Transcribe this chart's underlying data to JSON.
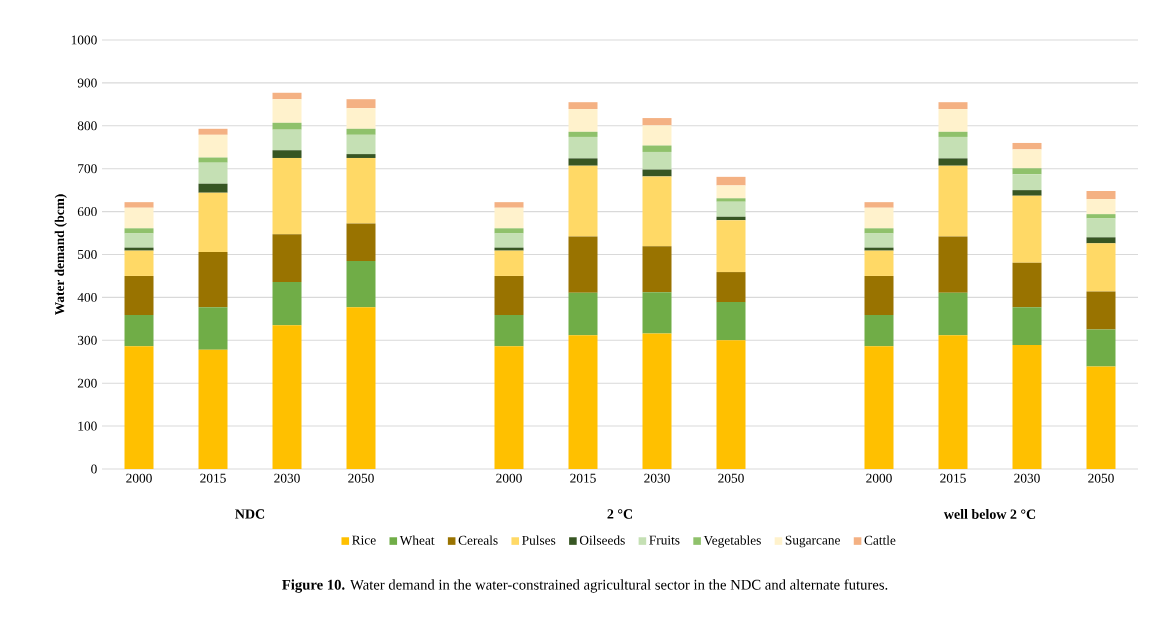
{
  "chart_data": {
    "type": "bar",
    "stacked": true,
    "ylabel": "Water demand (bcm)",
    "categories": [
      "2000",
      "2015",
      "2030",
      "2050",
      null,
      "2000",
      "2015",
      "2030",
      "2050",
      null,
      "2000",
      "2015",
      "2030",
      "2050"
    ],
    "series": [
      {
        "name": "Rice",
        "color": "#ffc000",
        "values": [
          286,
          278,
          335,
          377,
          null,
          286,
          312,
          316,
          300,
          null,
          286,
          312,
          289,
          239
        ]
      },
      {
        "name": "Wheat",
        "color": "#70ad47",
        "values": [
          73,
          99,
          101,
          108,
          null,
          73,
          99,
          96,
          89,
          null,
          73,
          99,
          88,
          86
        ]
      },
      {
        "name": "Cereals",
        "color": "#997300",
        "values": [
          91,
          129,
          111,
          87,
          null,
          91,
          131,
          107,
          70,
          null,
          91,
          131,
          104,
          89
        ]
      },
      {
        "name": "Pulses",
        "color": "#ffd966",
        "values": [
          59,
          138,
          178,
          153,
          null,
          59,
          165,
          163,
          121,
          null,
          59,
          165,
          156,
          112
        ]
      },
      {
        "name": "Oilseeds",
        "color": "#375623",
        "values": [
          7,
          21,
          18,
          9,
          null,
          7,
          17,
          16,
          8,
          null,
          7,
          17,
          13,
          14
        ]
      },
      {
        "name": "Fruits",
        "color": "#c5e0b4",
        "values": [
          33,
          49,
          48,
          45,
          null,
          33,
          50,
          41,
          35,
          null,
          33,
          50,
          37,
          44
        ]
      },
      {
        "name": "Vegetables",
        "color": "#8fc16b",
        "values": [
          12,
          12,
          16,
          14,
          null,
          12,
          12,
          15,
          8,
          null,
          12,
          12,
          14,
          10
        ]
      },
      {
        "name": "Sugarcane",
        "color": "#fff2cc",
        "values": [
          48,
          53,
          55,
          48,
          null,
          48,
          53,
          47,
          30,
          null,
          48,
          53,
          44,
          35
        ]
      },
      {
        "name": "Cattle",
        "color": "#f4b183",
        "values": [
          13,
          14,
          15,
          21,
          null,
          13,
          16,
          17,
          20,
          null,
          13,
          16,
          15,
          19
        ]
      }
    ],
    "ylim": [
      0,
      1000
    ],
    "yticks": [
      0,
      100,
      200,
      300,
      400,
      500,
      600,
      700,
      800,
      900,
      1000
    ],
    "grid": "y",
    "legend": "bottom",
    "annotations": [
      "NDC",
      "2 °C",
      "well below 2  °C",
      "**Figure 10.** Water demand in the water-constrained agricultural sector in the NDC and alternate futures."
    ]
  }
}
